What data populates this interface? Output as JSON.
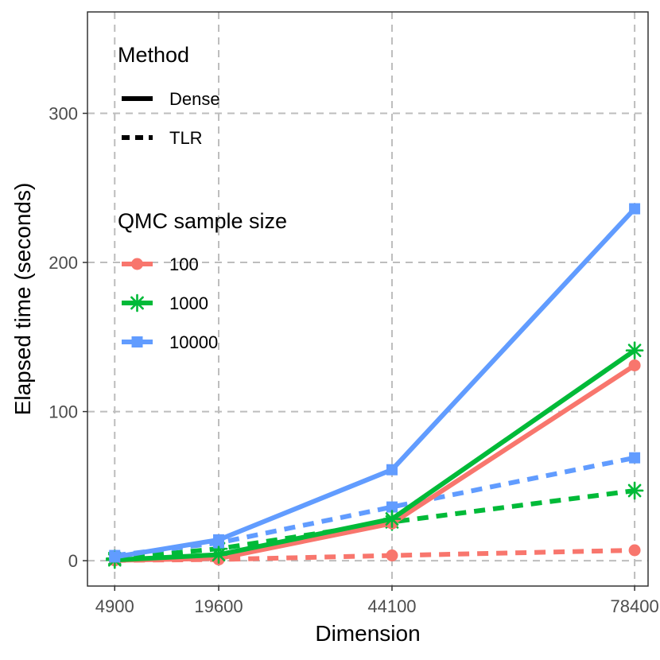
{
  "chart_data": {
    "type": "line",
    "xlabel": "Dimension",
    "ylabel": "Elapsed time (seconds)",
    "x": [
      4900,
      19600,
      44100,
      78400
    ],
    "x_tick_labels": [
      "4900",
      "19600",
      "44100",
      "78400"
    ],
    "y_ticks": [
      0,
      100,
      200,
      300
    ],
    "y_tick_labels": [
      "0",
      "100",
      "200",
      "300"
    ],
    "xlim": [
      1050,
      80300
    ],
    "ylim": [
      -17,
      368
    ],
    "grid": true,
    "legend": {
      "placement": "top-left-inside",
      "method_title": "Method",
      "method_entries": [
        {
          "label": "Dense",
          "linetype": "solid"
        },
        {
          "label": "TLR",
          "linetype": "dashed"
        }
      ],
      "size_title": "QMC sample size",
      "size_entries": [
        {
          "label": "100",
          "color": "#F8766D",
          "marker": "circle"
        },
        {
          "label": "1000",
          "color": "#00BA38",
          "marker": "asterisk"
        },
        {
          "label": "10000",
          "color": "#619CFF",
          "marker": "square"
        }
      ]
    },
    "series": [
      {
        "name": "Dense 100",
        "method": "Dense",
        "size": "100",
        "color": "#F8766D",
        "marker": "circle",
        "linetype": "solid",
        "values": [
          0.3,
          1.5,
          25,
          131
        ]
      },
      {
        "name": "Dense 1000",
        "method": "Dense",
        "size": "1000",
        "color": "#00BA38",
        "marker": "asterisk",
        "linetype": "solid",
        "values": [
          0.5,
          4,
          28,
          141
        ]
      },
      {
        "name": "Dense 10000",
        "method": "Dense",
        "size": "10000",
        "color": "#619CFF",
        "marker": "square",
        "linetype": "solid",
        "values": [
          2.5,
          14,
          61,
          236
        ]
      },
      {
        "name": "TLR 100",
        "method": "TLR",
        "size": "100",
        "color": "#F8766D",
        "marker": "circle",
        "linetype": "dashed",
        "values": [
          0.2,
          0.8,
          3.5,
          7
        ]
      },
      {
        "name": "TLR 1000",
        "method": "TLR",
        "size": "1000",
        "color": "#00BA38",
        "marker": "asterisk",
        "linetype": "dashed",
        "values": [
          1.5,
          8,
          26,
          47
        ]
      },
      {
        "name": "TLR 10000",
        "method": "TLR",
        "size": "10000",
        "color": "#619CFF",
        "marker": "square",
        "linetype": "dashed",
        "values": [
          3.5,
          12,
          36,
          69
        ]
      }
    ]
  }
}
